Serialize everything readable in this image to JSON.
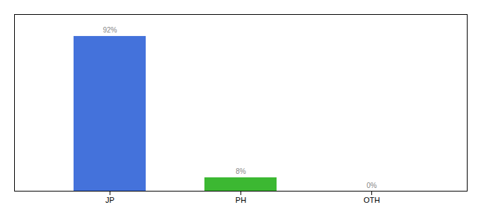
{
  "chart_data": {
    "type": "bar",
    "categories": [
      "JP",
      "PH",
      "OTH"
    ],
    "values": [
      92,
      8,
      0
    ],
    "value_labels": [
      "92%",
      "8%",
      "0%"
    ],
    "colors": [
      "#4472db",
      "#3cb832",
      "#4472db"
    ],
    "ylim": [
      0,
      105
    ],
    "data_labels": true,
    "tick_labels": "x",
    "grid": false
  }
}
